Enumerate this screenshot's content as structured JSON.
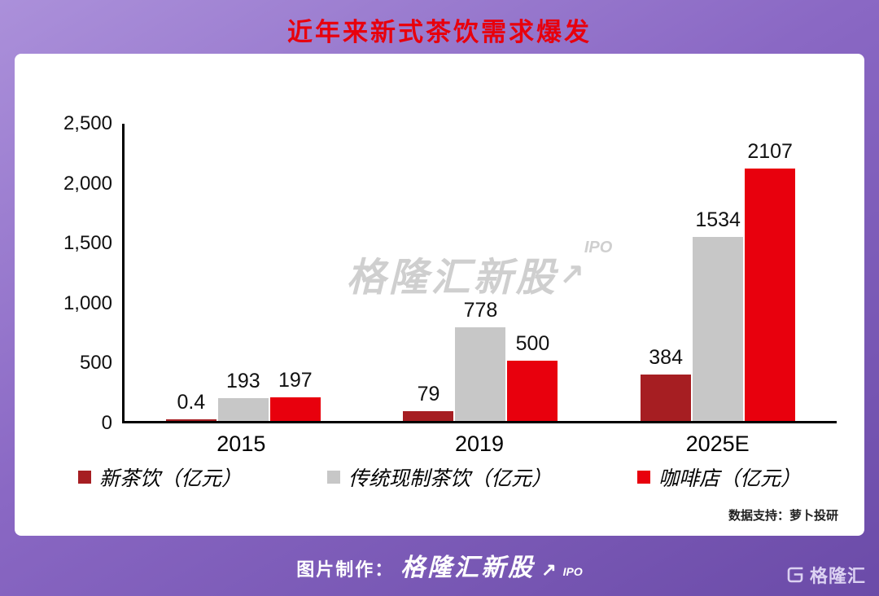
{
  "title": "近年来新式茶饮需求爆发",
  "watermark": {
    "text": "格隆汇新股",
    "arrow": "↗",
    "suffix": "IPO"
  },
  "chart_data": {
    "type": "bar",
    "categories": [
      "2015",
      "2019",
      "2025E"
    ],
    "series": [
      {
        "name": "新茶饮（亿元）",
        "color": "#a61e22",
        "values": [
          0.4,
          79,
          384
        ]
      },
      {
        "name": "传统现制茶饮（亿元）",
        "color": "#c7c7c7",
        "values": [
          193,
          778,
          1534
        ]
      },
      {
        "name": "咖啡店（亿元）",
        "color": "#e8000d",
        "values": [
          197,
          500,
          2107
        ]
      }
    ],
    "ylim": [
      0,
      2500
    ],
    "yticks": [
      "2,500",
      "2,000",
      "1,500",
      "1,000",
      "500",
      "0"
    ],
    "xlabel": "",
    "ylabel": "",
    "grid": false,
    "legend_position": "bottom"
  },
  "source_note": "数据支持：萝卜投研",
  "footer": {
    "prefix": "图片制作：",
    "brand": "格隆汇新股",
    "arrow": "↗",
    "suffix": "IPO"
  },
  "logo": {
    "text": "格隆汇"
  },
  "colors": {
    "accent_red": "#e8000d",
    "dark_red": "#a61e22",
    "gray": "#c7c7c7",
    "background_purple": "#8a68c4"
  }
}
